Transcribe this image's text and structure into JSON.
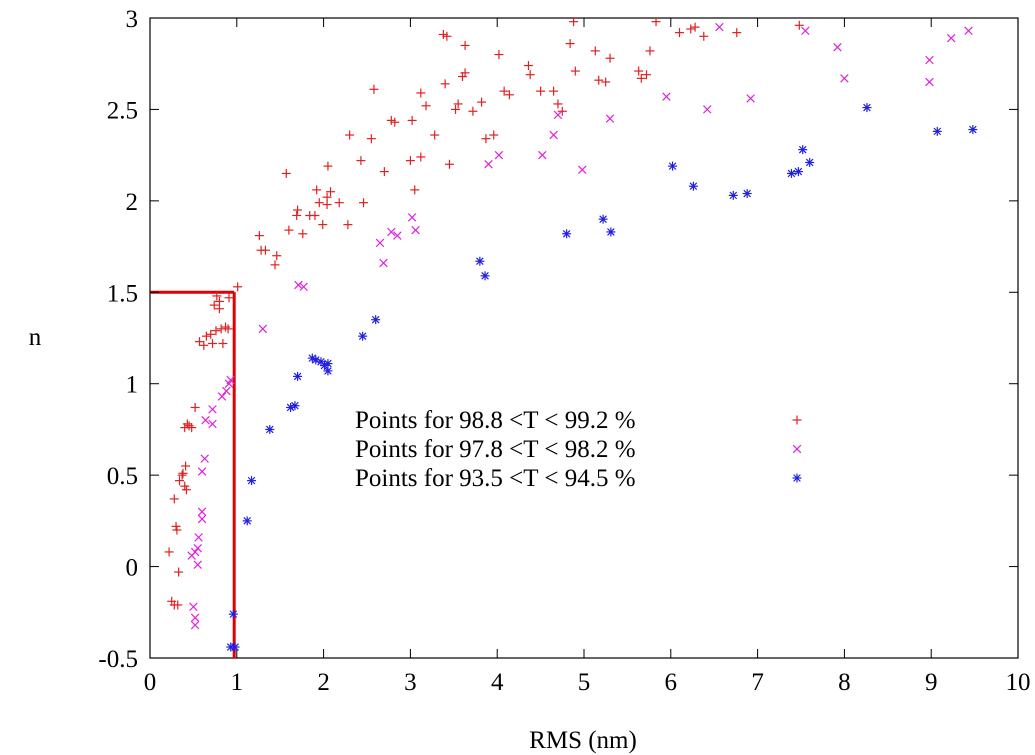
{
  "chart_data": {
    "type": "scatter",
    "xlabel": "RMS (nm)",
    "ylabel": "n",
    "xlim": [
      0,
      10
    ],
    "ylim": [
      -0.5,
      3
    ],
    "x_ticks": [
      "0",
      "1",
      "2",
      "3",
      "4",
      "5",
      "6",
      "7",
      "8",
      "9",
      "10"
    ],
    "y_ticks": [
      "-0.5",
      "0",
      "0.5",
      "1",
      "1.5",
      "2",
      "2.5",
      "3"
    ],
    "x_tick_values": [
      0,
      1,
      2,
      3,
      4,
      5,
      6,
      7,
      8,
      9,
      10
    ],
    "y_tick_values": [
      -0.5,
      0,
      0.5,
      1,
      1.5,
      2,
      2.5,
      3
    ],
    "grid": false,
    "legend_position": "center",
    "threshold_line": {
      "x": 0.97,
      "y": 1.5,
      "color": "#e00000"
    },
    "series": [
      {
        "name": "Points for  98.8 <T < 99.2 %",
        "marker": "plus",
        "color": "#e02020",
        "points": [
          [
            0.22,
            0.08
          ],
          [
            0.3,
            0.22
          ],
          [
            0.31,
            0.2
          ],
          [
            0.33,
            -0.03
          ],
          [
            0.28,
            0.37
          ],
          [
            0.34,
            0.47
          ],
          [
            0.37,
            0.5
          ],
          [
            0.38,
            0.51
          ],
          [
            0.4,
            0.44
          ],
          [
            0.42,
            0.42
          ],
          [
            0.41,
            0.55
          ],
          [
            0.4,
            0.76
          ],
          [
            0.43,
            0.78
          ],
          [
            0.45,
            0.77
          ],
          [
            0.48,
            0.76
          ],
          [
            0.52,
            0.87
          ],
          [
            0.25,
            -0.19
          ],
          [
            0.28,
            -0.21
          ],
          [
            0.32,
            -0.21
          ],
          [
            0.57,
            1.23
          ],
          [
            0.62,
            1.21
          ],
          [
            0.65,
            1.26
          ],
          [
            0.7,
            1.27
          ],
          [
            0.72,
            1.22
          ],
          [
            0.76,
            1.29
          ],
          [
            0.8,
            1.41
          ],
          [
            0.8,
            1.45
          ],
          [
            0.82,
            1.3
          ],
          [
            0.84,
            1.22
          ],
          [
            0.87,
            1.31
          ],
          [
            0.9,
            1.3
          ],
          [
            0.91,
            1.47
          ],
          [
            0.74,
            1.43
          ],
          [
            0.77,
            1.48
          ],
          [
            1.01,
            1.53
          ],
          [
            1.26,
            1.81
          ],
          [
            1.28,
            1.73
          ],
          [
            1.33,
            1.73
          ],
          [
            1.44,
            1.65
          ],
          [
            1.46,
            1.7
          ],
          [
            1.6,
            1.84
          ],
          [
            1.57,
            2.15
          ],
          [
            1.69,
            1.92
          ],
          [
            1.7,
            1.95
          ],
          [
            1.76,
            1.82
          ],
          [
            1.84,
            1.92
          ],
          [
            1.9,
            1.92
          ],
          [
            1.92,
            2.06
          ],
          [
            1.95,
            1.99
          ],
          [
            1.99,
            1.87
          ],
          [
            2.04,
            1.98
          ],
          [
            2.04,
            2.02
          ],
          [
            2.05,
            2.19
          ],
          [
            2.08,
            2.05
          ],
          [
            2.18,
            1.99
          ],
          [
            2.28,
            1.87
          ],
          [
            2.3,
            2.36
          ],
          [
            2.43,
            2.22
          ],
          [
            2.46,
            1.99
          ],
          [
            2.55,
            2.34
          ],
          [
            2.58,
            2.61
          ],
          [
            2.7,
            2.16
          ],
          [
            2.78,
            2.44
          ],
          [
            2.82,
            2.43
          ],
          [
            3.0,
            2.22
          ],
          [
            3.02,
            2.44
          ],
          [
            3.05,
            2.06
          ],
          [
            3.12,
            2.24
          ],
          [
            3.12,
            2.59
          ],
          [
            3.18,
            2.52
          ],
          [
            3.28,
            2.36
          ],
          [
            3.38,
            2.91
          ],
          [
            3.4,
            2.64
          ],
          [
            3.42,
            2.9
          ],
          [
            3.45,
            2.2
          ],
          [
            3.52,
            2.5
          ],
          [
            3.55,
            2.53
          ],
          [
            3.6,
            2.68
          ],
          [
            3.63,
            2.85
          ],
          [
            3.63,
            2.7
          ],
          [
            3.72,
            2.49
          ],
          [
            3.82,
            2.54
          ],
          [
            3.87,
            2.34
          ],
          [
            3.96,
            2.36
          ],
          [
            4.02,
            2.8
          ],
          [
            4.08,
            2.6
          ],
          [
            4.14,
            2.58
          ],
          [
            4.36,
            2.74
          ],
          [
            4.38,
            2.69
          ],
          [
            4.5,
            2.6
          ],
          [
            4.65,
            2.6
          ],
          [
            4.7,
            2.53
          ],
          [
            4.75,
            2.49
          ],
          [
            4.84,
            2.86
          ],
          [
            4.88,
            2.98
          ],
          [
            4.9,
            2.71
          ],
          [
            5.13,
            2.82
          ],
          [
            5.17,
            2.66
          ],
          [
            5.25,
            2.65
          ],
          [
            5.3,
            2.78
          ],
          [
            5.63,
            2.71
          ],
          [
            5.66,
            2.67
          ],
          [
            5.72,
            2.69
          ],
          [
            5.76,
            2.82
          ],
          [
            5.83,
            2.98
          ],
          [
            6.1,
            2.92
          ],
          [
            6.23,
            2.94
          ],
          [
            6.28,
            2.95
          ],
          [
            6.38,
            2.9
          ],
          [
            6.76,
            2.92
          ],
          [
            7.48,
            2.96
          ]
        ]
      },
      {
        "name": "Points for  97.8 <T < 98.2 %",
        "marker": "cross",
        "color": "#e020e0",
        "points": [
          [
            0.5,
            -0.22
          ],
          [
            0.52,
            -0.28
          ],
          [
            0.52,
            -0.32
          ],
          [
            0.48,
            0.06
          ],
          [
            0.52,
            0.08
          ],
          [
            0.55,
            0.1
          ],
          [
            0.55,
            0.01
          ],
          [
            0.56,
            0.16
          ],
          [
            0.6,
            0.26
          ],
          [
            0.6,
            0.3
          ],
          [
            0.6,
            0.52
          ],
          [
            0.63,
            0.59
          ],
          [
            0.64,
            0.8
          ],
          [
            0.72,
            0.78
          ],
          [
            0.72,
            0.86
          ],
          [
            0.83,
            0.93
          ],
          [
            0.88,
            0.96
          ],
          [
            0.91,
            1.0
          ],
          [
            0.93,
            1.02
          ],
          [
            1.3,
            1.3
          ],
          [
            1.71,
            1.54
          ],
          [
            1.77,
            1.53
          ],
          [
            2.65,
            1.77
          ],
          [
            2.69,
            1.66
          ],
          [
            2.78,
            1.83
          ],
          [
            2.85,
            1.81
          ],
          [
            3.02,
            1.91
          ],
          [
            3.06,
            1.84
          ],
          [
            3.9,
            2.2
          ],
          [
            4.02,
            2.25
          ],
          [
            4.52,
            2.25
          ],
          [
            4.65,
            2.36
          ],
          [
            4.7,
            2.47
          ],
          [
            4.98,
            2.17
          ],
          [
            5.3,
            2.45
          ],
          [
            5.95,
            2.57
          ],
          [
            6.42,
            2.5
          ],
          [
            6.56,
            2.95
          ],
          [
            6.92,
            2.56
          ],
          [
            7.55,
            2.93
          ],
          [
            7.92,
            2.84
          ],
          [
            8.0,
            2.67
          ],
          [
            8.98,
            2.77
          ],
          [
            8.98,
            2.65
          ],
          [
            9.23,
            2.89
          ],
          [
            9.43,
            2.93
          ]
        ]
      },
      {
        "name": "Points for  93.5 <T < 94.5 %",
        "marker": "star",
        "color": "#2020e0",
        "points": [
          [
            0.93,
            -0.44
          ],
          [
            0.98,
            -0.44
          ],
          [
            0.96,
            -0.26
          ],
          [
            1.12,
            0.25
          ],
          [
            1.17,
            0.47
          ],
          [
            1.38,
            0.75
          ],
          [
            1.62,
            0.87
          ],
          [
            1.67,
            0.88
          ],
          [
            1.7,
            1.04
          ],
          [
            1.87,
            1.14
          ],
          [
            1.91,
            1.13
          ],
          [
            1.97,
            1.12
          ],
          [
            2.01,
            1.1
          ],
          [
            2.05,
            1.11
          ],
          [
            2.05,
            1.07
          ],
          [
            2.45,
            1.26
          ],
          [
            2.6,
            1.35
          ],
          [
            3.8,
            1.67
          ],
          [
            3.86,
            1.59
          ],
          [
            4.8,
            1.82
          ],
          [
            5.22,
            1.9
          ],
          [
            5.31,
            1.83
          ],
          [
            6.02,
            2.19
          ],
          [
            6.26,
            2.08
          ],
          [
            6.72,
            2.03
          ],
          [
            6.88,
            2.04
          ],
          [
            7.39,
            2.15
          ],
          [
            7.47,
            2.16
          ],
          [
            7.52,
            2.28
          ],
          [
            7.6,
            2.21
          ],
          [
            8.26,
            2.51
          ],
          [
            9.07,
            2.38
          ],
          [
            9.48,
            2.39
          ]
        ]
      }
    ]
  }
}
